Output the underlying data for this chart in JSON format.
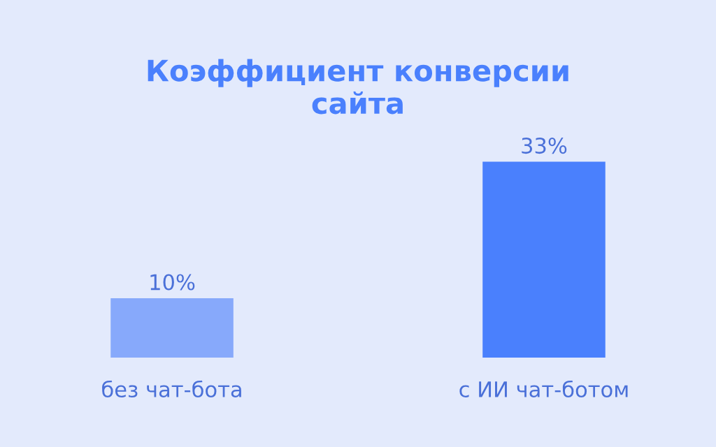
{
  "chart_data": {
    "type": "bar",
    "title": "Коэффициент конверсии\nсайта",
    "categories": [
      "без чат-бота",
      "с ИИ чат-ботом"
    ],
    "values": [
      10,
      33
    ],
    "colors": [
      "#87a9fb",
      "#4a80fd"
    ],
    "value_labels": [
      "10%",
      "33%"
    ],
    "grid": false,
    "legend": false
  }
}
